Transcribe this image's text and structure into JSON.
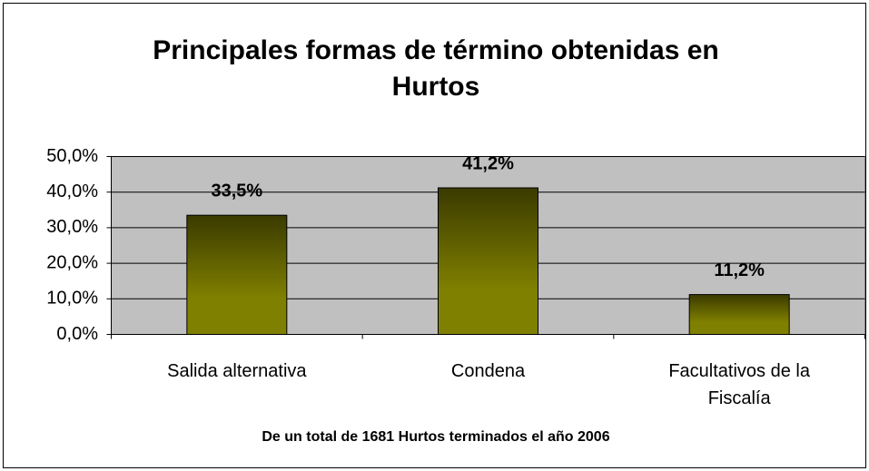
{
  "chart_data": {
    "type": "bar",
    "title": "Principales formas de término obtenidas en Hurtos",
    "x_label": "De un total de 1681 Hurtos terminados el año 2006",
    "categories": [
      "Salida alternativa",
      "Condena",
      "Facultativos de la Fiscalía"
    ],
    "values": [
      33.5,
      41.2,
      11.2
    ],
    "value_labels": [
      "33,5%",
      "41,2%",
      "11,2%"
    ],
    "color": "#808000",
    "ylim": [
      0,
      50
    ],
    "yticks": [
      {
        "value": 0,
        "label": "0,0%"
      },
      {
        "value": 10,
        "label": "10,0%"
      },
      {
        "value": 20,
        "label": "20,0%"
      },
      {
        "value": 30,
        "label": "30,0%"
      },
      {
        "value": 40,
        "label": "40,0%"
      },
      {
        "value": 50,
        "label": "50,0%"
      }
    ],
    "grid": true
  }
}
